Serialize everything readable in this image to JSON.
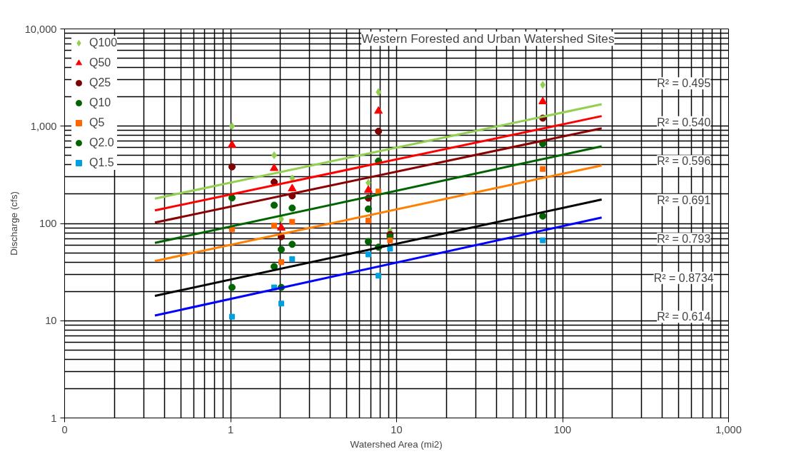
{
  "chart_data": {
    "type": "scatter",
    "title": "Western Forested and Urban Watershed Sites",
    "xlabel": "Watershed Area (mi2)",
    "ylabel": "Discharge (cfs)",
    "log": "xy",
    "xlim": [
      0.1,
      1000
    ],
    "ylim": [
      1,
      10000
    ],
    "xticks": [
      {
        "value": 0.1,
        "label": "0"
      },
      1,
      10,
      100,
      {
        "value": 1000,
        "label": "1,000"
      }
    ],
    "yticks": [
      1,
      10,
      100,
      {
        "value": 1000,
        "label": "1,000"
      },
      {
        "value": 10000,
        "label": "10,000"
      }
    ],
    "grid": true,
    "legend": "top left",
    "series": [
      {
        "name": "Q100",
        "color": "#92d050",
        "marker": "diamond",
        "x": [
          1.02,
          1.83,
          2.02,
          2.35,
          6.76,
          7.78,
          9.14,
          76
        ],
        "values": [
          1000,
          502,
          111,
          290,
          262,
          2240,
          84,
          2660
        ]
      },
      {
        "name": "Q50",
        "color": "#ff0000",
        "marker": "triangle",
        "x": [
          1.02,
          1.83,
          2.02,
          2.35,
          6.76,
          7.78,
          9.14,
          76
        ],
        "values": [
          640,
          369,
          90,
          228,
          220,
          1430,
          null,
          1790
        ]
      },
      {
        "name": "Q25",
        "color": "#7f0000",
        "marker": "circle",
        "x": [
          1.02,
          1.83,
          2.02,
          2.35,
          6.76,
          7.78,
          9.14,
          76
        ],
        "values": [
          382,
          266,
          73,
          192,
          182,
          886,
          77,
          1210
        ]
      },
      {
        "name": "Q10",
        "color": "#006400",
        "marker": "circle",
        "x": [
          1.02,
          1.83,
          2.02,
          2.35,
          6.76,
          7.78,
          9.14,
          76
        ],
        "values": [
          183,
          154,
          54,
          144,
          141,
          438,
          73,
          662
        ]
      },
      {
        "name": "Q5",
        "color": "#ff6600",
        "marker": "square",
        "x": [
          1.02,
          1.83,
          2.02,
          2.35,
          6.76,
          7.78,
          9.14,
          76
        ],
        "values": [
          87,
          95,
          40,
          104,
          107,
          213,
          67,
          363
        ]
      },
      {
        "name": "Q2.0",
        "color": "#006400",
        "marker": "circle",
        "x": [
          1.02,
          1.83,
          2.02,
          2.35,
          6.76,
          7.78,
          9.14,
          76
        ],
        "values": [
          22,
          36,
          22,
          61,
          65,
          57,
          null,
          119
        ]
      },
      {
        "name": "Q1.5",
        "color": "#00a0e0",
        "marker": "square",
        "x": [
          1.02,
          1.83,
          2.02,
          2.35,
          6.76,
          7.78,
          9.14,
          76
        ],
        "values": [
          11,
          22,
          15,
          43,
          48,
          29,
          55,
          67
        ]
      },
      {
        "type": "line",
        "color": "#92d050",
        "x": [
          0.35,
          172
        ],
        "values": [
          180,
          1680
        ]
      },
      {
        "type": "line",
        "color": "#ff0000",
        "x": [
          0.35,
          172
        ],
        "values": [
          136,
          1270
        ]
      },
      {
        "type": "line",
        "color": "#8b0000",
        "x": [
          0.35,
          172
        ],
        "values": [
          102,
          950
        ]
      },
      {
        "type": "line",
        "color": "#006400",
        "x": [
          0.35,
          172
        ],
        "values": [
          63,
          620
        ]
      },
      {
        "type": "line",
        "color": "#ff7f00",
        "x": [
          0.35,
          172
        ],
        "values": [
          41,
          395
        ]
      },
      {
        "type": "line",
        "color": "#000000",
        "x": [
          0.35,
          172
        ],
        "values": [
          18,
          176
        ]
      },
      {
        "type": "line",
        "color": "#0000ff",
        "x": [
          0.35,
          172
        ],
        "values": [
          11.3,
          115
        ]
      }
    ],
    "annotations": [
      "R² = 0.495",
      "R² = 0.540",
      "R² = 0.596",
      "R² = 0.691",
      "R² = 0.793",
      "R² = 0.8734",
      "R² = 0.614"
    ]
  }
}
